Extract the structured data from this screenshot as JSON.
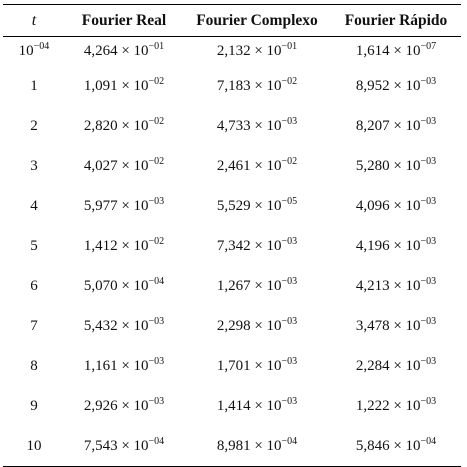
{
  "table": {
    "headers": [
      "t",
      "Fourier Real",
      "Fourier Complexo",
      "Fourier Rápido"
    ],
    "rows": [
      {
        "t": {
          "base": "10",
          "exp": "−04"
        },
        "cells": [
          {
            "mantissa": "4,264 × 10",
            "exp": "−01"
          },
          {
            "mantissa": "2,132 × 10",
            "exp": "−01"
          },
          {
            "mantissa": "1,614 × 10",
            "exp": "−07"
          }
        ]
      },
      {
        "t": {
          "base": "1",
          "exp": ""
        },
        "cells": [
          {
            "mantissa": "1,091 × 10",
            "exp": "−02"
          },
          {
            "mantissa": "7,183 × 10",
            "exp": "−02"
          },
          {
            "mantissa": "8,952 × 10",
            "exp": "−03"
          }
        ]
      },
      {
        "t": {
          "base": "2",
          "exp": ""
        },
        "cells": [
          {
            "mantissa": "2,820 × 10",
            "exp": "−02"
          },
          {
            "mantissa": "4,733 × 10",
            "exp": "−03"
          },
          {
            "mantissa": "8,207 × 10",
            "exp": "−03"
          }
        ]
      },
      {
        "t": {
          "base": "3",
          "exp": ""
        },
        "cells": [
          {
            "mantissa": "4,027 × 10",
            "exp": "−02"
          },
          {
            "mantissa": "2,461 × 10",
            "exp": "−02"
          },
          {
            "mantissa": "5,280 × 10",
            "exp": "−03"
          }
        ]
      },
      {
        "t": {
          "base": "4",
          "exp": ""
        },
        "cells": [
          {
            "mantissa": "5,977 × 10",
            "exp": "−03"
          },
          {
            "mantissa": "5,529 × 10",
            "exp": "−05"
          },
          {
            "mantissa": "4,096 × 10",
            "exp": "−03"
          }
        ]
      },
      {
        "t": {
          "base": "5",
          "exp": ""
        },
        "cells": [
          {
            "mantissa": "1,412 × 10",
            "exp": "−02"
          },
          {
            "mantissa": "7,342 × 10",
            "exp": "−03"
          },
          {
            "mantissa": "4,196 × 10",
            "exp": "−03"
          }
        ]
      },
      {
        "t": {
          "base": "6",
          "exp": ""
        },
        "cells": [
          {
            "mantissa": "5,070 × 10",
            "exp": "−04"
          },
          {
            "mantissa": "1,267 × 10",
            "exp": "−03"
          },
          {
            "mantissa": "4,213 × 10",
            "exp": "−03"
          }
        ]
      },
      {
        "t": {
          "base": "7",
          "exp": ""
        },
        "cells": [
          {
            "mantissa": "5,432 × 10",
            "exp": "−03"
          },
          {
            "mantissa": "2,298 × 10",
            "exp": "−03"
          },
          {
            "mantissa": "3,478 × 10",
            "exp": "−03"
          }
        ]
      },
      {
        "t": {
          "base": "8",
          "exp": ""
        },
        "cells": [
          {
            "mantissa": "1,161 × 10",
            "exp": "−03"
          },
          {
            "mantissa": "1,701 × 10",
            "exp": "−03"
          },
          {
            "mantissa": "2,284 × 10",
            "exp": "−03"
          }
        ]
      },
      {
        "t": {
          "base": "9",
          "exp": ""
        },
        "cells": [
          {
            "mantissa": "2,926 × 10",
            "exp": "−03"
          },
          {
            "mantissa": "1,414 × 10",
            "exp": "−03"
          },
          {
            "mantissa": "1,222 × 10",
            "exp": "−03"
          }
        ]
      },
      {
        "t": {
          "base": "10",
          "exp": ""
        },
        "cells": [
          {
            "mantissa": "7,543 × 10",
            "exp": "−04"
          },
          {
            "mantissa": "8,981 × 10",
            "exp": "−04"
          },
          {
            "mantissa": "5,846 × 10",
            "exp": "−04"
          }
        ]
      }
    ]
  }
}
